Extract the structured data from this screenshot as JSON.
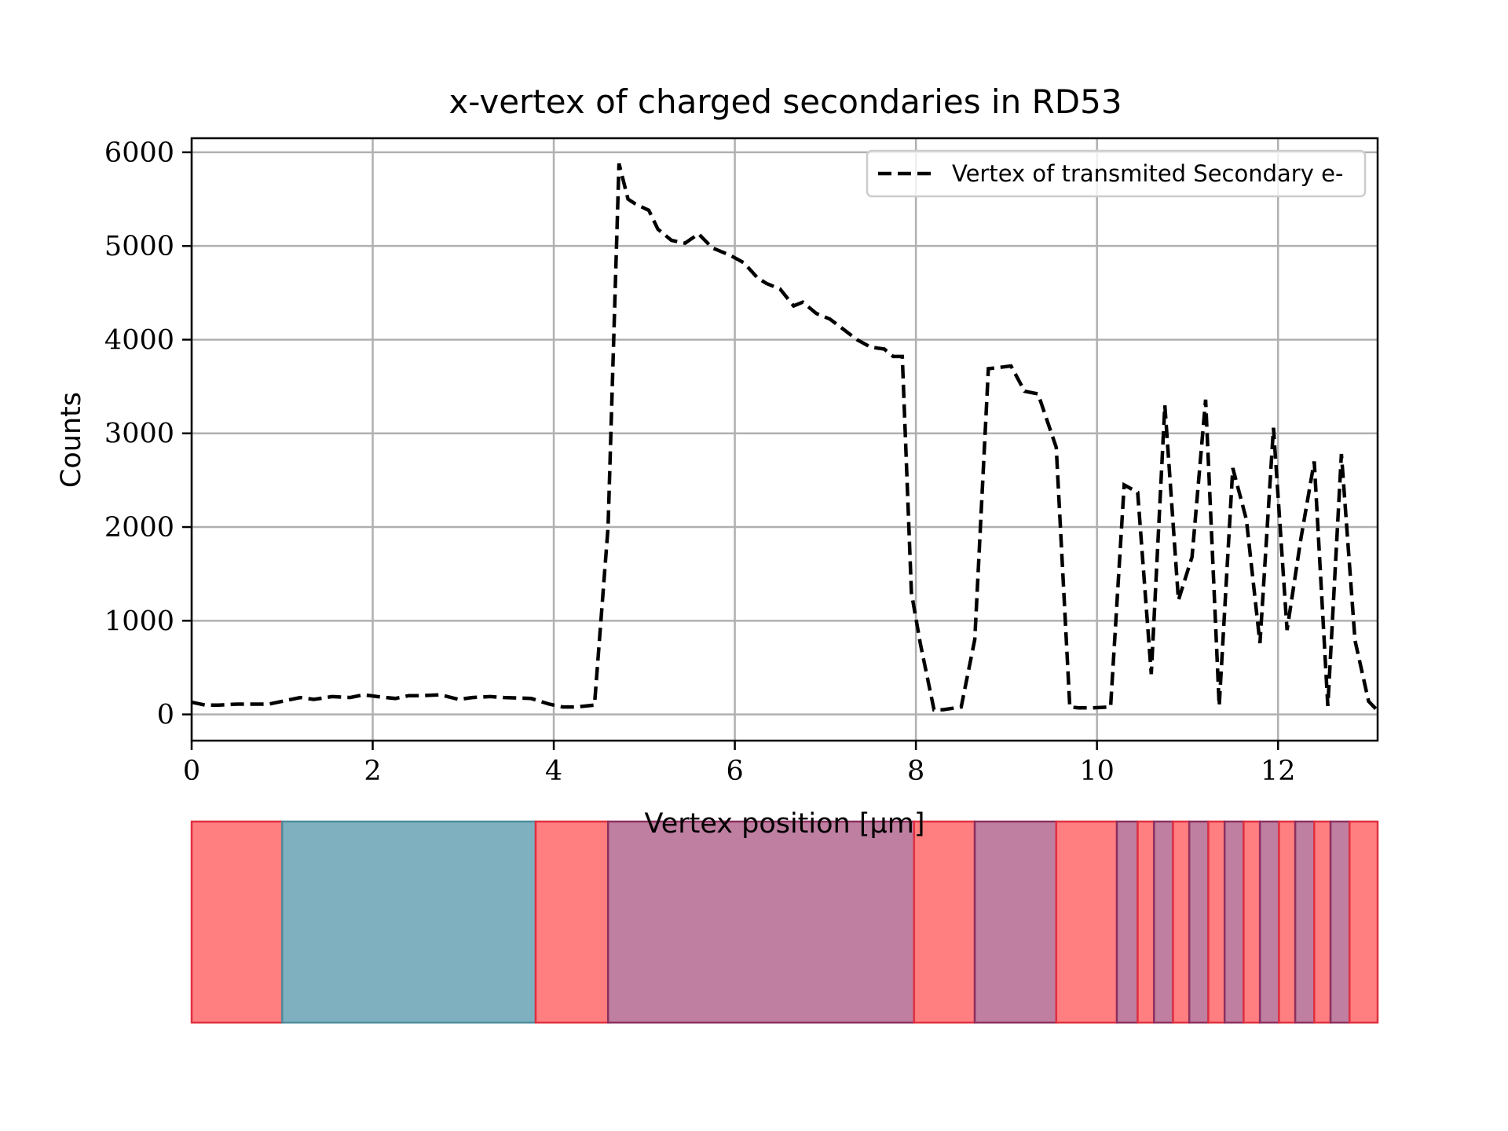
{
  "chart_data": {
    "type": "line",
    "title": "x-vertex of charged secondaries in RD53",
    "xlabel": "Vertex position [μm]",
    "ylabel": "Counts",
    "xlim": [
      0,
      13.1
    ],
    "ylim": [
      -280,
      6150
    ],
    "xticks": [
      0,
      2,
      4,
      6,
      8,
      10,
      12
    ],
    "yticks": [
      0,
      1000,
      2000,
      3000,
      4000,
      5000,
      6000
    ],
    "grid": true,
    "legend": {
      "location": "upper right",
      "entries": [
        "Vertex of transmited Secondary e-"
      ]
    },
    "series": [
      {
        "name": "Vertex of transmited Secondary e-",
        "style": "dashed",
        "color": "#000000",
        "x": [
          0.0,
          0.15,
          0.3,
          0.5,
          0.65,
          0.85,
          1.0,
          1.2,
          1.35,
          1.55,
          1.75,
          1.9,
          2.05,
          2.25,
          2.4,
          2.55,
          2.75,
          2.95,
          3.1,
          3.3,
          3.45,
          3.75,
          3.95,
          4.1,
          4.25,
          4.45,
          4.6,
          4.72,
          4.82,
          4.9,
          5.05,
          5.15,
          5.3,
          5.45,
          5.6,
          5.75,
          5.95,
          6.1,
          6.25,
          6.35,
          6.5,
          6.65,
          6.75,
          6.9,
          7.05,
          7.2,
          7.35,
          7.5,
          7.65,
          7.75,
          7.85,
          7.95,
          8.05,
          8.2,
          8.3,
          8.5,
          8.65,
          8.8,
          8.9,
          9.05,
          9.2,
          9.35,
          9.55,
          9.7,
          9.8,
          9.95,
          10.15,
          10.3,
          10.45,
          10.6,
          10.75,
          10.9,
          11.05,
          11.2,
          11.35,
          11.5,
          11.65,
          11.8,
          11.95,
          12.1,
          12.25,
          12.4,
          12.55,
          12.7,
          12.85,
          13.0,
          13.1
        ],
        "y": [
          130,
          100,
          100,
          110,
          110,
          110,
          140,
          180,
          160,
          190,
          180,
          210,
          190,
          170,
          200,
          200,
          210,
          160,
          180,
          190,
          180,
          170,
          110,
          80,
          80,
          100,
          2000,
          5880,
          5500,
          5450,
          5380,
          5180,
          5060,
          5030,
          5130,
          4980,
          4900,
          4820,
          4660,
          4600,
          4540,
          4360,
          4400,
          4280,
          4220,
          4110,
          4000,
          3920,
          3900,
          3820,
          3820,
          1300,
          750,
          50,
          50,
          80,
          800,
          3690,
          3700,
          3720,
          3450,
          3420,
          2850,
          80,
          70,
          70,
          80,
          2450,
          2370,
          430,
          3300,
          1220,
          1680,
          3360,
          90,
          2630,
          2080,
          760,
          3060,
          900,
          1860,
          2700,
          90,
          2780,
          790,
          140,
          40
        ]
      }
    ]
  },
  "layer_strip": {
    "colors": {
      "red": "#ff7f80",
      "teal": "#7fb0bf",
      "purple": "#bf7fa0",
      "red_edge": "#e03040",
      "teal_edge": "#4f8c9c",
      "purple_edge": "#8c3060"
    },
    "segments": [
      {
        "material": "red",
        "x0": 0.0,
        "x1": 1.0
      },
      {
        "material": "teal",
        "x0": 1.0,
        "x1": 3.8
      },
      {
        "material": "red",
        "x0": 3.8,
        "x1": 4.6
      },
      {
        "material": "purple",
        "x0": 4.6,
        "x1": 7.98
      },
      {
        "material": "red",
        "x0": 7.98,
        "x1": 8.65
      },
      {
        "material": "purple",
        "x0": 8.65,
        "x1": 9.55
      },
      {
        "material": "red",
        "x0": 9.55,
        "x1": 10.22
      },
      {
        "material": "purple",
        "x0": 10.22,
        "x1": 10.45
      },
      {
        "material": "red",
        "x0": 10.45,
        "x1": 10.63
      },
      {
        "material": "purple",
        "x0": 10.63,
        "x1": 10.84
      },
      {
        "material": "red",
        "x0": 10.84,
        "x1": 11.02
      },
      {
        "material": "purple",
        "x0": 11.02,
        "x1": 11.23
      },
      {
        "material": "red",
        "x0": 11.23,
        "x1": 11.41
      },
      {
        "material": "purple",
        "x0": 11.41,
        "x1": 11.62
      },
      {
        "material": "red",
        "x0": 11.62,
        "x1": 11.8
      },
      {
        "material": "purple",
        "x0": 11.8,
        "x1": 12.01
      },
      {
        "material": "red",
        "x0": 12.01,
        "x1": 12.19
      },
      {
        "material": "purple",
        "x0": 12.19,
        "x1": 12.4
      },
      {
        "material": "red",
        "x0": 12.4,
        "x1": 12.58
      },
      {
        "material": "purple",
        "x0": 12.58,
        "x1": 12.79
      },
      {
        "material": "red",
        "x0": 12.79,
        "x1": 13.1
      }
    ]
  }
}
